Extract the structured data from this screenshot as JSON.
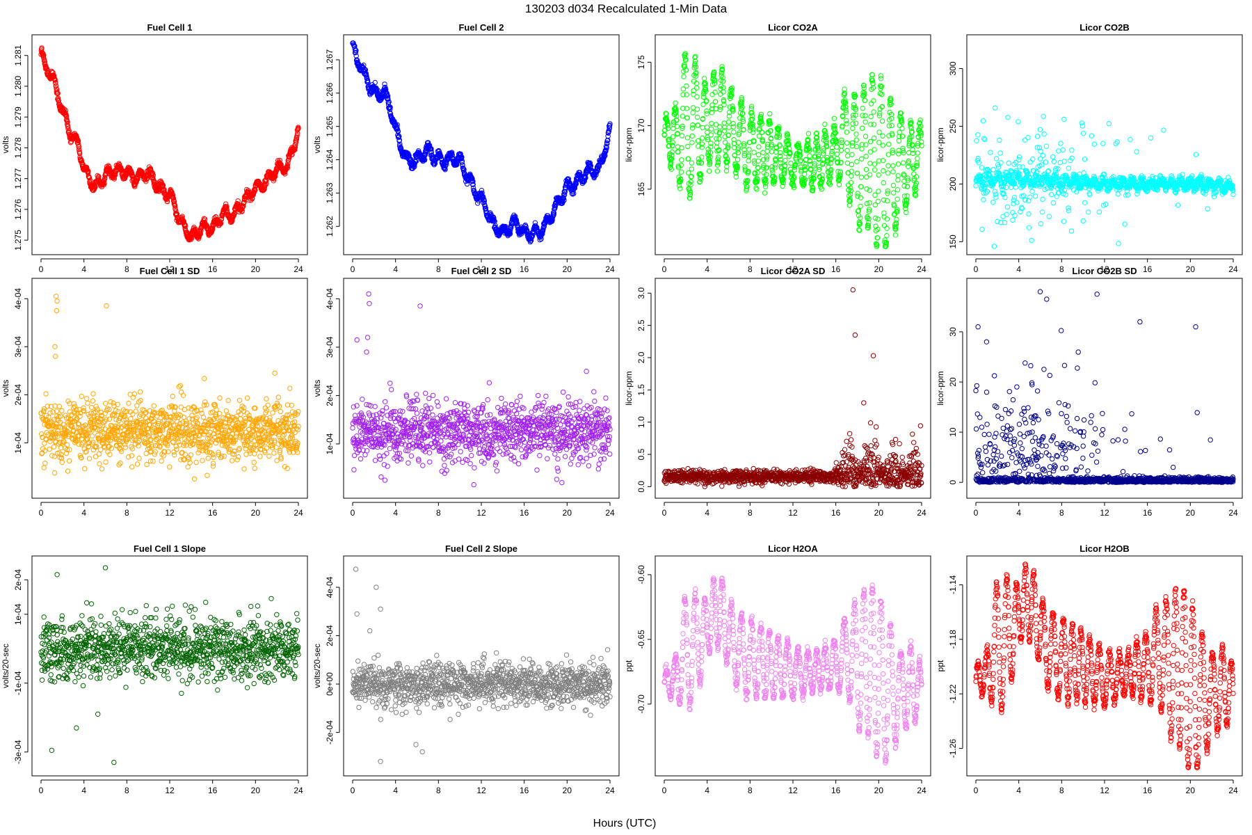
{
  "figure": {
    "title": "130203   d034   Recalculated 1-Min Data",
    "xlabel": "Hours (UTC)"
  },
  "chart_data": [
    {
      "type": "scatter",
      "title": "Fuel Cell 1",
      "ylabel": "volts",
      "color": "#ff0000",
      "xlim": [
        0,
        24
      ],
      "ylim": [
        1.2748,
        1.2814
      ],
      "x_ticks": [
        0,
        4,
        8,
        12,
        16,
        20,
        24
      ],
      "x_tick_labels": [
        "0",
        "4",
        "8",
        "12",
        "16",
        "20",
        "24"
      ],
      "y_ticks": [
        1.275,
        1.276,
        1.277,
        1.278,
        1.279,
        1.28,
        1.281
      ],
      "y_tick_labels": [
        "1.275",
        "1.276",
        "1.277",
        "1.278",
        "1.279",
        "1.280",
        "1.281"
      ],
      "pattern": "walk",
      "noise": 0.00012,
      "x": [
        0,
        0.3,
        1,
        2,
        3,
        3.5,
        4,
        5,
        6,
        7,
        8,
        9,
        10,
        11,
        12,
        13,
        14,
        15,
        16,
        17,
        18,
        19,
        20,
        21,
        22,
        23,
        24
      ],
      "y": [
        1.2812,
        1.2806,
        1.2803,
        1.2793,
        1.2783,
        1.278,
        1.2772,
        1.2768,
        1.2771,
        1.2772,
        1.2773,
        1.277,
        1.2771,
        1.2768,
        1.2765,
        1.2755,
        1.2752,
        1.2754,
        1.2753,
        1.276,
        1.2758,
        1.2762,
        1.2768,
        1.2769,
        1.2772,
        1.2775,
        1.2786
      ]
    },
    {
      "type": "scatter",
      "title": "Fuel Cell 2",
      "ylabel": "volts",
      "color": "#0000ff",
      "xlim": [
        0,
        24
      ],
      "ylim": [
        1.2614,
        1.2675
      ],
      "x_ticks": [
        0,
        4,
        8,
        12,
        16,
        20,
        24
      ],
      "x_tick_labels": [
        "0",
        "4",
        "8",
        "12",
        "16",
        "20",
        "24"
      ],
      "y_ticks": [
        1.262,
        1.263,
        1.264,
        1.265,
        1.266,
        1.267
      ],
      "y_tick_labels": [
        "1.262",
        "1.263",
        "1.264",
        "1.265",
        "1.266",
        "1.267"
      ],
      "pattern": "walk",
      "noise": 0.00012,
      "x": [
        0,
        0.4,
        1,
        2,
        3,
        3.5,
        4,
        5,
        6,
        7,
        8,
        9,
        10,
        11,
        12,
        13,
        14,
        15,
        16,
        17,
        18,
        19,
        20,
        21,
        22,
        23,
        24
      ],
      "y": [
        1.2674,
        1.267,
        1.2665,
        1.2661,
        1.266,
        1.2655,
        1.2648,
        1.2641,
        1.264,
        1.2642,
        1.2641,
        1.264,
        1.2639,
        1.2634,
        1.2628,
        1.262,
        1.2619,
        1.2621,
        1.2617,
        1.2619,
        1.262,
        1.2625,
        1.2633,
        1.2633,
        1.2636,
        1.2638,
        1.2649
      ]
    },
    {
      "type": "scatter",
      "title": "Licor CO2A",
      "ylabel": "licor-ppm",
      "color": "#00ff00",
      "xlim": [
        0,
        24
      ],
      "ylim": [
        160.5,
        176.5
      ],
      "x_ticks": [
        0,
        4,
        8,
        12,
        16,
        20,
        24
      ],
      "x_tick_labels": [
        "0",
        "4",
        "8",
        "12",
        "16",
        "20",
        "24"
      ],
      "y_ticks": [
        165,
        170,
        175
      ],
      "y_tick_labels": [
        "165",
        "170",
        "175"
      ],
      "pattern": "wave",
      "noise": 0.3,
      "x": [
        0,
        1,
        2,
        3,
        4,
        5,
        6,
        7,
        8,
        10,
        12,
        14,
        16,
        17,
        18,
        19,
        20,
        21,
        22,
        23,
        24
      ],
      "center": [
        169,
        169,
        170,
        170,
        170,
        171,
        170,
        169,
        168,
        168,
        167,
        167,
        168,
        169,
        167,
        168,
        167,
        166,
        167,
        167,
        168
      ],
      "amp": [
        1.5,
        2.5,
        6,
        5,
        3,
        4,
        3,
        3,
        3,
        2.5,
        1.5,
        2,
        2,
        4,
        5,
        6,
        7,
        6,
        4,
        3,
        2
      ]
    },
    {
      "type": "scatter",
      "title": "Licor CO2B",
      "ylabel": "licor-ppm",
      "color": "#00ffff",
      "xlim": [
        0,
        24
      ],
      "ylim": [
        146,
        322
      ],
      "x_ticks": [
        0,
        4,
        8,
        12,
        16,
        20,
        24
      ],
      "x_tick_labels": [
        "0",
        "4",
        "8",
        "12",
        "16",
        "20",
        "24"
      ],
      "y_ticks": [
        150,
        200,
        250,
        300
      ],
      "y_tick_labels": [
        "150",
        "200",
        "250",
        "300"
      ],
      "pattern": "spiky",
      "noise": 2.5,
      "x": [
        0,
        4,
        8,
        12,
        16,
        20,
        24
      ],
      "center": [
        203,
        205,
        203,
        200,
        200,
        200,
        198
      ],
      "amp": [
        3,
        4,
        4,
        3,
        3,
        3,
        3
      ],
      "spike_prob": [
        0.25,
        0.45,
        0.35,
        0.1,
        0.04,
        0.02,
        0.0
      ],
      "spike_scale": 25
    },
    {
      "type": "scatter",
      "title": "Fuel Cell 1 SD",
      "ylabel": "volts",
      "color": "#ffa500",
      "xlim": [
        0,
        24
      ],
      "ylim": [
        2e-06,
        0.000425
      ],
      "x_ticks": [
        0,
        4,
        8,
        12,
        16,
        20,
        24
      ],
      "x_tick_labels": [
        "0",
        "4",
        "8",
        "12",
        "16",
        "20",
        "24"
      ],
      "y_ticks": [
        0.0001,
        0.0002,
        0.0003,
        0.0004
      ],
      "y_tick_labels": [
        "1e-04",
        "2e-04",
        "3e-04",
        "4e-04"
      ],
      "pattern": "noise",
      "base": 0.000125,
      "noise": 3.2e-05,
      "outliers_x": [
        1.4,
        1.5,
        1.45,
        1.3,
        1.35,
        6.1,
        21.8
      ],
      "outliers_y": [
        0.000405,
        0.000395,
        0.000375,
        0.0003,
        0.00028,
        0.000385,
        0.000245
      ]
    },
    {
      "type": "scatter",
      "title": "Fuel Cell 2 SD",
      "ylabel": "volts",
      "color": "#a020f0",
      "xlim": [
        0,
        24
      ],
      "ylim": [
        5e-06,
        0.000425
      ],
      "x_ticks": [
        0,
        4,
        8,
        12,
        16,
        20,
        24
      ],
      "x_tick_labels": [
        "0",
        "4",
        "8",
        "12",
        "16",
        "20",
        "24"
      ],
      "y_ticks": [
        0.0001,
        0.0002,
        0.0003,
        0.0004
      ],
      "y_tick_labels": [
        "1e-04",
        "2e-04",
        "3e-04",
        "4e-04"
      ],
      "pattern": "noise",
      "base": 0.000125,
      "noise": 3.2e-05,
      "outliers_x": [
        1.5,
        1.55,
        1.4,
        1.3,
        0.4,
        6.3,
        21.8
      ],
      "outliers_y": [
        0.00041,
        0.00039,
        0.00032,
        0.00029,
        0.000315,
        0.000385,
        0.00025
      ]
    },
    {
      "type": "scatter",
      "title": "Licor CO2A SD",
      "ylabel": "licor-ppm",
      "color": "#8b0000",
      "xlim": [
        0,
        24
      ],
      "ylim": [
        -0.05,
        3.1
      ],
      "x_ticks": [
        0,
        4,
        8,
        12,
        16,
        20,
        24
      ],
      "x_tick_labels": [
        "0",
        "4",
        "8",
        "12",
        "16",
        "20",
        "24"
      ],
      "y_ticks": [
        0,
        0.5,
        1,
        1.5,
        2,
        2.5,
        3
      ],
      "y_tick_labels": [
        "0.0",
        "0.5",
        "1.0",
        "1.5",
        "2.0",
        "2.5",
        "3.0"
      ],
      "pattern": "regime",
      "base": 0.15,
      "noise": 0.05,
      "break_x": 16,
      "late_noise": 0.35,
      "outliers_x": [
        17.6,
        17.8,
        19.5,
        18.6
      ],
      "outliers_y": [
        3.05,
        2.35,
        2.03,
        1.3
      ]
    },
    {
      "type": "scatter",
      "title": "Licor CO2B SD",
      "ylabel": "licor-ppm",
      "color": "#00008b",
      "xlim": [
        0,
        24
      ],
      "ylim": [
        -1.5,
        39
      ],
      "x_ticks": [
        0,
        4,
        8,
        12,
        16,
        20,
        24
      ],
      "x_tick_labels": [
        "0",
        "4",
        "8",
        "12",
        "16",
        "20",
        "24"
      ],
      "y_ticks": [
        0,
        10,
        20,
        30
      ],
      "y_tick_labels": [
        "0",
        "10",
        "20",
        "30"
      ],
      "pattern": "spiky_sd",
      "base": 0.4,
      "noise": 0.3,
      "x": [
        0,
        4,
        8,
        12,
        16,
        20,
        24
      ],
      "spike_prob": [
        0.3,
        0.55,
        0.4,
        0.1,
        0.03,
        0.02,
        0.0
      ],
      "spike_scale": 9,
      "outliers_x": [
        6,
        6.6,
        11.3,
        15.3,
        20.5,
        0.2,
        1
      ],
      "outliers_y": [
        38,
        36.5,
        37.5,
        32,
        31,
        31,
        28
      ]
    },
    {
      "type": "scatter",
      "title": "Fuel Cell 1 Slope",
      "ylabel": "volts/20-sec",
      "color": "#006400",
      "xlim": [
        0,
        24
      ],
      "ylim": [
        -0.000345,
        0.000245
      ],
      "x_ticks": [
        0,
        4,
        8,
        12,
        16,
        20,
        24
      ],
      "x_tick_labels": [
        "0",
        "4",
        "8",
        "12",
        "16",
        "20",
        "24"
      ],
      "y_ticks": [
        -0.0003,
        -0.0001,
        0.0001,
        0.0002
      ],
      "y_tick_labels": [
        "-3e-04",
        "-1e-04",
        "1e-04",
        "2e-04"
      ],
      "pattern": "noise",
      "base": 0.0,
      "noise": 4.5e-05,
      "outliers_x": [
        6,
        6.8,
        1.0,
        1.5,
        3.3,
        5.3
      ],
      "outliers_y": [
        0.000235,
        -0.00033,
        -0.000295,
        0.000215,
        -0.00023,
        -0.00019
      ]
    },
    {
      "type": "scatter",
      "title": "Fuel Cell 2 Slope",
      "ylabel": "volts/20-sec",
      "color": "#808080",
      "xlim": [
        0,
        24
      ],
      "ylim": [
        -0.000345,
        0.000495
      ],
      "x_ticks": [
        0,
        4,
        8,
        12,
        16,
        20,
        24
      ],
      "x_tick_labels": [
        "0",
        "4",
        "8",
        "12",
        "16",
        "20",
        "24"
      ],
      "y_ticks": [
        -0.0002,
        0,
        0.0002,
        0.0004
      ],
      "y_tick_labels": [
        "-2e-04",
        "0e+00",
        "2e-04",
        "4e-04"
      ],
      "pattern": "noise",
      "base": 0.0,
      "noise": 4.5e-05,
      "outliers_x": [
        0.3,
        0.4,
        2.2,
        2.6,
        1.6,
        2.6,
        5.9,
        6.5
      ],
      "outliers_y": [
        0.000475,
        0.00029,
        0.0004,
        0.00031,
        0.00022,
        -0.00032,
        -0.00025,
        -0.00028
      ]
    },
    {
      "type": "scatter",
      "title": "Licor H2OA",
      "ylabel": "ppt",
      "color": "#ee82ee",
      "xlim": [
        0,
        24
      ],
      "ylim": [
        -0.749,
        -0.592
      ],
      "x_ticks": [
        0,
        4,
        8,
        12,
        16,
        20,
        24
      ],
      "x_tick_labels": [
        "0",
        "4",
        "8",
        "12",
        "16",
        "20",
        "24"
      ],
      "y_ticks": [
        -0.7,
        -0.65,
        -0.6
      ],
      "y_tick_labels": [
        "-0.70",
        "-0.65",
        "-0.60"
      ],
      "pattern": "wave",
      "noise": 0.002,
      "x": [
        0,
        1,
        2,
        3,
        4,
        5,
        6,
        7,
        8,
        10,
        12,
        14,
        16,
        17,
        18,
        19,
        20,
        21,
        22,
        23,
        24
      ],
      "center": [
        -0.685,
        -0.68,
        -0.66,
        -0.655,
        -0.64,
        -0.625,
        -0.645,
        -0.66,
        -0.665,
        -0.67,
        -0.675,
        -0.675,
        -0.67,
        -0.66,
        -0.67,
        -0.665,
        -0.68,
        -0.69,
        -0.69,
        -0.685,
        -0.69
      ],
      "amp": [
        0.01,
        0.015,
        0.045,
        0.04,
        0.02,
        0.03,
        0.025,
        0.03,
        0.03,
        0.025,
        0.02,
        0.015,
        0.02,
        0.03,
        0.05,
        0.06,
        0.065,
        0.055,
        0.03,
        0.03,
        0.02
      ]
    },
    {
      "type": "scatter",
      "title": "Licor H2OB",
      "ylabel": "ppt",
      "color": "#ff0000",
      "xlim": [
        0,
        24
      ],
      "ylim": [
        -1.274,
        -1.125
      ],
      "x_ticks": [
        0,
        4,
        8,
        12,
        16,
        20,
        24
      ],
      "x_tick_labels": [
        "0",
        "4",
        "8",
        "12",
        "16",
        "20",
        "24"
      ],
      "y_ticks": [
        -1.26,
        -1.22,
        -1.18,
        -1.14
      ],
      "y_tick_labels": [
        "-1.26",
        "-1.22",
        "-1.18",
        "-1.14"
      ],
      "pattern": "wave",
      "noise": 0.002,
      "x": [
        0,
        1,
        2,
        3,
        4,
        5,
        6,
        7,
        8,
        10,
        12,
        14,
        16,
        17,
        18,
        19,
        20,
        21,
        22,
        23,
        24
      ],
      "center": [
        -1.21,
        -1.205,
        -1.185,
        -1.18,
        -1.16,
        -1.15,
        -1.175,
        -1.19,
        -1.195,
        -1.2,
        -1.21,
        -1.205,
        -1.2,
        -1.19,
        -1.2,
        -1.2,
        -1.215,
        -1.225,
        -1.22,
        -1.215,
        -1.22
      ],
      "amp": [
        0.01,
        0.015,
        0.05,
        0.045,
        0.02,
        0.03,
        0.025,
        0.03,
        0.03,
        0.025,
        0.02,
        0.015,
        0.025,
        0.035,
        0.05,
        0.06,
        0.065,
        0.05,
        0.03,
        0.03,
        0.02
      ]
    }
  ]
}
